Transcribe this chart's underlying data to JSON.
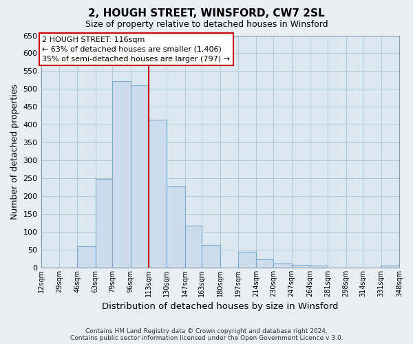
{
  "title": "2, HOUGH STREET, WINSFORD, CW7 2SL",
  "subtitle": "Size of property relative to detached houses in Winsford",
  "xlabel": "Distribution of detached houses by size in Winsford",
  "ylabel": "Number of detached properties",
  "bar_color": "#ccdcec",
  "bar_edge_color": "#7aaacc",
  "bins": [
    12,
    29,
    46,
    63,
    79,
    96,
    113,
    130,
    147,
    163,
    180,
    197,
    214,
    230,
    247,
    264,
    281,
    298,
    314,
    331,
    348
  ],
  "bin_labels": [
    "12sqm",
    "29sqm",
    "46sqm",
    "63sqm",
    "79sqm",
    "96sqm",
    "113sqm",
    "130sqm",
    "147sqm",
    "163sqm",
    "180sqm",
    "197sqm",
    "214sqm",
    "230sqm",
    "247sqm",
    "264sqm",
    "281sqm",
    "298sqm",
    "314sqm",
    "331sqm",
    "348sqm"
  ],
  "heights": [
    0,
    0,
    60,
    248,
    522,
    510,
    415,
    228,
    118,
    63,
    0,
    45,
    23,
    12,
    8,
    5,
    0,
    0,
    0,
    5
  ],
  "ylim": [
    0,
    650
  ],
  "yticks": [
    0,
    50,
    100,
    150,
    200,
    250,
    300,
    350,
    400,
    450,
    500,
    550,
    600,
    650
  ],
  "property_line_x": 113,
  "property_line_color": "#cc0000",
  "annotation_title": "2 HOUGH STREET: 116sqm",
  "annotation_line1": "← 63% of detached houses are smaller (1,406)",
  "annotation_line2": "35% of semi-detached houses are larger (797) →",
  "annotation_box_color": "#ffffff",
  "annotation_box_edge_color": "#cc0000",
  "footer1": "Contains HM Land Registry data © Crown copyright and database right 2024.",
  "footer2": "Contains public sector information licensed under the Open Government Licence v 3.0.",
  "background_color": "#e8eef4",
  "plot_bg_color": "#dce8f0",
  "grid_color": "#b8ccd8"
}
